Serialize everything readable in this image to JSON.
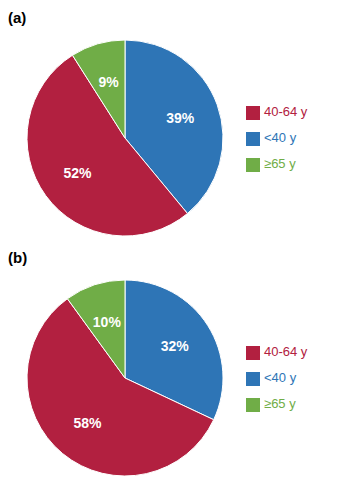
{
  "chart_data": [
    {
      "type": "pie",
      "title": "(a)",
      "categories": [
        "<40 y",
        "40-64 y",
        "≥65 y"
      ],
      "values": [
        39,
        52,
        9
      ],
      "value_labels": [
        "39%",
        "52%",
        "9%"
      ],
      "colors": [
        "#2E75B6",
        "#B22040",
        "#70AD47"
      ],
      "data_labels": true,
      "legend": "right"
    },
    {
      "type": "pie",
      "title": "(b)",
      "categories": [
        "<40 y",
        "40-64 y",
        "≥65 y"
      ],
      "values": [
        32,
        58,
        10
      ],
      "value_labels": [
        "32%",
        "58%",
        "10%"
      ],
      "colors": [
        "#2E75B6",
        "#B22040",
        "#70AD47"
      ],
      "data_labels": true,
      "legend": "right"
    }
  ]
}
